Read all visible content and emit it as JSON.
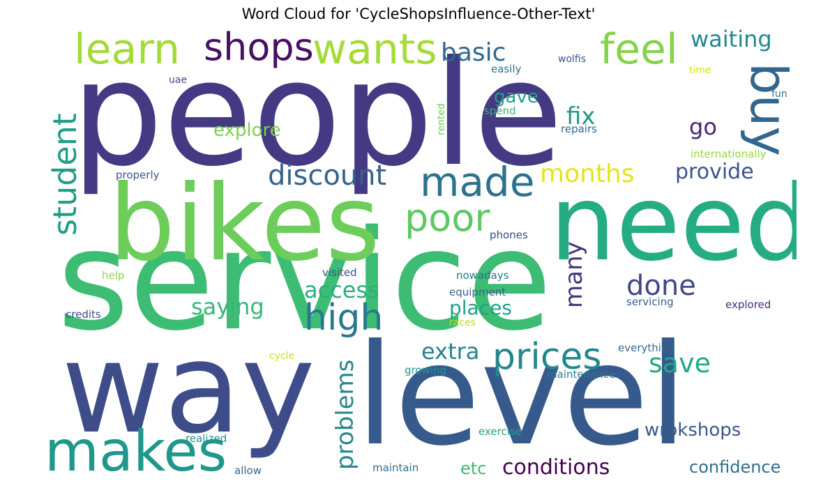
{
  "title": "Word Cloud for 'CycleShopsInfluence-Other-Text'",
  "words": [
    {
      "text": "people",
      "color": "#443983"
    },
    {
      "text": "service",
      "color": "#3dbc74"
    },
    {
      "text": "bikes",
      "color": "#6ccd5a"
    },
    {
      "text": "need",
      "color": "#25ac82"
    },
    {
      "text": "way",
      "color": "#3e4c8a"
    },
    {
      "text": "level",
      "color": "#375a8c"
    },
    {
      "text": "makes",
      "color": "#1f978b"
    },
    {
      "text": "learn",
      "color": "#a2da37"
    },
    {
      "text": "shops",
      "color": "#471063"
    },
    {
      "text": "wants",
      "color": "#a5db36"
    },
    {
      "text": "feel",
      "color": "#84d44b"
    },
    {
      "text": "buy",
      "color": "#31668e"
    },
    {
      "text": "waiting",
      "color": "#24878e"
    },
    {
      "text": "basic",
      "color": "#31678e"
    },
    {
      "text": "student",
      "color": "#1f9e89"
    },
    {
      "text": "discount",
      "color": "#33628d"
    },
    {
      "text": "made",
      "color": "#2c728e"
    },
    {
      "text": "poor",
      "color": "#5ec962"
    },
    {
      "text": "high",
      "color": "#2a788e"
    },
    {
      "text": "prices",
      "color": "#23888e"
    },
    {
      "text": "months",
      "color": "#e5e419"
    },
    {
      "text": "provide",
      "color": "#3b528b"
    },
    {
      "text": "fix",
      "color": "#1f9a8a"
    },
    {
      "text": "go",
      "color": "#482576"
    },
    {
      "text": "gave",
      "color": "#1fa187"
    },
    {
      "text": "explore",
      "color": "#7ad151"
    },
    {
      "text": "done",
      "color": "#3f4788"
    },
    {
      "text": "many",
      "color": "#46327e"
    },
    {
      "text": "access",
      "color": "#29af7f"
    },
    {
      "text": "saying",
      "color": "#35b779"
    },
    {
      "text": "places",
      "color": "#1fa188"
    },
    {
      "text": "extra",
      "color": "#26828e"
    },
    {
      "text": "save",
      "color": "#22a884"
    },
    {
      "text": "problems",
      "color": "#25848e"
    },
    {
      "text": "wrokshops",
      "color": "#38598c"
    },
    {
      "text": "conditions",
      "color": "#440154"
    },
    {
      "text": "confidence",
      "color": "#2d708e"
    },
    {
      "text": "etc",
      "color": "#3aba76"
    },
    {
      "text": "wolfis",
      "color": "#39568c"
    },
    {
      "text": "easily",
      "color": "#2c728e"
    },
    {
      "text": "time",
      "color": "#d8e219"
    },
    {
      "text": "fun",
      "color": "#2b748e"
    },
    {
      "text": "uae",
      "color": "#3e4a89"
    },
    {
      "text": "rented",
      "color": "#6ece58"
    },
    {
      "text": "spend",
      "color": "#35b779"
    },
    {
      "text": "repairs",
      "color": "#32648e"
    },
    {
      "text": "internationally",
      "color": "#95d840"
    },
    {
      "text": "properly",
      "color": "#3b528b"
    },
    {
      "text": "phones",
      "color": "#3e4989"
    },
    {
      "text": "help",
      "color": "#8fd744"
    },
    {
      "text": "visited",
      "color": "#3b528b"
    },
    {
      "text": "nowadays",
      "color": "#2b748e"
    },
    {
      "text": "equipment",
      "color": "#33638d"
    },
    {
      "text": "servicing",
      "color": "#355f8d"
    },
    {
      "text": "credits",
      "color": "#3e4989"
    },
    {
      "text": "races",
      "color": "#b5de2b"
    },
    {
      "text": "explored",
      "color": "#482979"
    },
    {
      "text": "everything",
      "color": "#31678e"
    },
    {
      "text": "cycle",
      "color": "#c8e020"
    },
    {
      "text": "growing",
      "color": "#1f988b"
    },
    {
      "text": "maintenance",
      "color": "#2a788e"
    },
    {
      "text": "exercise",
      "color": "#20a386"
    },
    {
      "text": "realized",
      "color": "#21918c"
    },
    {
      "text": "allow",
      "color": "#33638d"
    },
    {
      "text": "maintain",
      "color": "#2d708e"
    }
  ]
}
